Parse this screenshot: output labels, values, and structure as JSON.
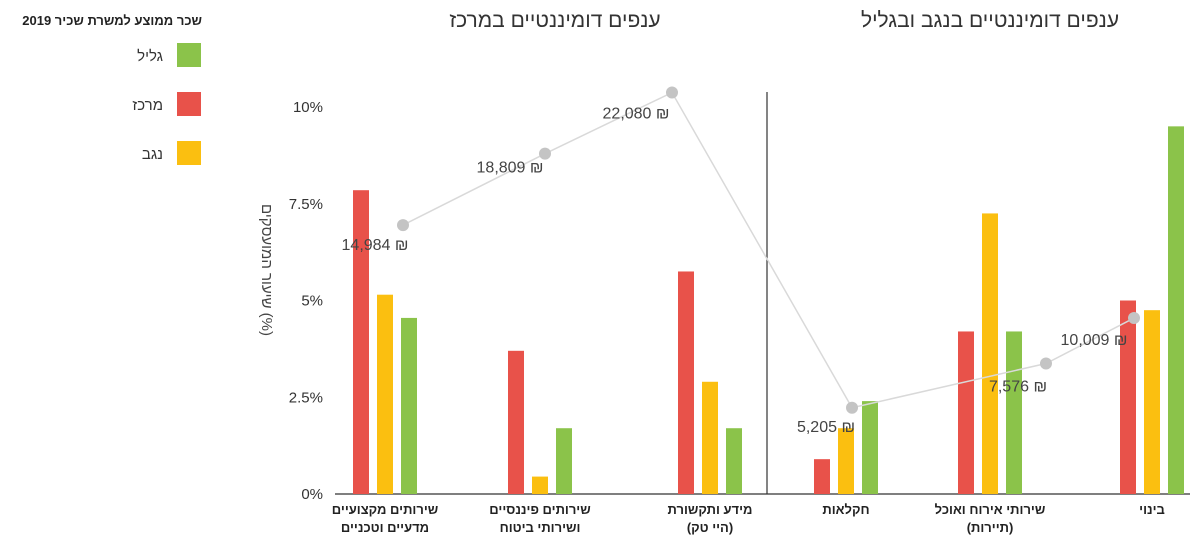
{
  "chart_data": {
    "type": "bar",
    "group_titles": [
      "ענפים דומיננטיים במרכז",
      "ענפים דומיננטיים בנגב ובגליל"
    ],
    "categories": [
      [
        "שירותים מקצועיים",
        "מדעיים וטכניים"
      ],
      [
        "שירותים פיננסיים",
        "ושירותי ביטוח"
      ],
      [
        "מידע ותקשורת",
        "(היי טק)"
      ],
      [
        "חקלאות"
      ],
      [
        "שירותי אירוח ואוכל",
        "(תיירות)"
      ],
      [
        "בינוי"
      ]
    ],
    "series": [
      {
        "name": "מרכז",
        "color": "#e8524a",
        "values": [
          7.85,
          3.7,
          5.75,
          0.9,
          4.2,
          5.0
        ]
      },
      {
        "name": "נגב",
        "color": "#fbbf10",
        "values": [
          5.15,
          0.45,
          2.9,
          1.7,
          7.25,
          4.75
        ]
      },
      {
        "name": "גליל",
        "color": "#8bc34a",
        "values": [
          4.55,
          1.7,
          1.7,
          2.4,
          4.2,
          9.5
        ]
      }
    ],
    "wage_series": {
      "values": [
        14984,
        18809,
        22080,
        5205,
        7576,
        10009
      ],
      "labels": [
        "14,984 ₪",
        "18,809 ₪",
        "22,080 ₪",
        "5,205 ₪",
        "7,576 ₪",
        "10,009 ₪"
      ],
      "color": "#c4c4c4"
    },
    "legend_title": "שכר ממוצע למשרת שכיר 2019",
    "ylabel": "שיעור המועסקים (%)",
    "ylim": [
      0,
      10
    ],
    "yticks": [
      0,
      2.5,
      5,
      7.5,
      10
    ],
    "ytick_labels": [
      "0%",
      "2.5%",
      "5%",
      "7.5%",
      "10%"
    ],
    "grid": false,
    "legend_position": "top-left"
  }
}
